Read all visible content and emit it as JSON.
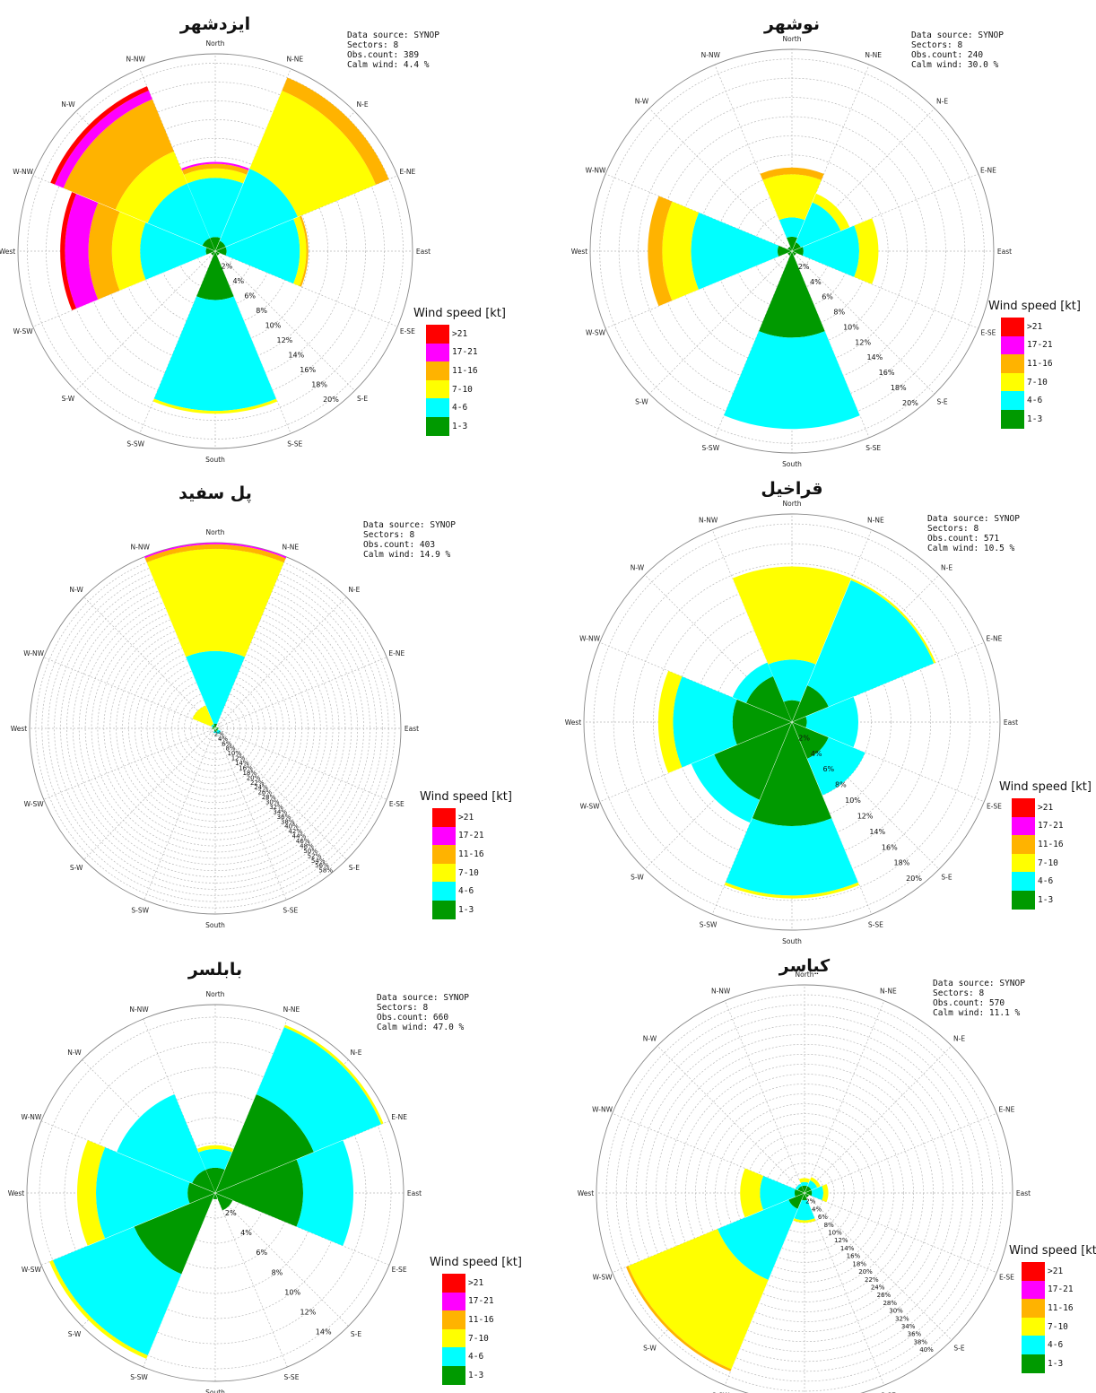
{
  "legend": {
    "title": "Wind speed [kt]",
    "classes": [
      {
        "label": ">21",
        "color": "#ff0000"
      },
      {
        "label": "17-21",
        "color": "#ff00ff"
      },
      {
        "label": "11-16",
        "color": "#ffb300"
      },
      {
        "label": "7-10",
        "color": "#ffff00"
      },
      {
        "label": "4-6",
        "color": "#00ffff"
      },
      {
        "label": "1-3",
        "color": "#009a00"
      }
    ]
  },
  "directions": [
    "North",
    "N-NE",
    "N-E",
    "E-NE",
    "East",
    "E-SE",
    "S-E",
    "S-SE",
    "South",
    "S-SW",
    "S-W",
    "W-SW",
    "West",
    "W-NW",
    "N-W",
    "N-NW"
  ],
  "chart_data": [
    {
      "type": "wind-rose",
      "title": "ایزدشهر",
      "info": {
        "source": "Data source: SYNOP",
        "sectors": "Sectors: 8",
        "obs": "Obs.count: 389",
        "calm": "Calm wind: 4.4 %"
      },
      "radial_unit": "%",
      "radial_ticks": [
        2,
        4,
        6,
        8,
        10,
        12,
        14,
        16,
        18,
        20
      ],
      "rmax": 21,
      "sectors": [
        {
          "direction": "North",
          "stack": [
            1.5,
            7.8,
            8.8,
            9.3,
            9.5,
            9.5
          ]
        },
        {
          "direction": "N-E",
          "stack": [
            1.2,
            9.5,
            18.5,
            20.0,
            20.0,
            20.0
          ]
        },
        {
          "direction": "East",
          "stack": [
            1.2,
            9.0,
            9.7,
            9.9,
            9.9,
            9.9
          ]
        },
        {
          "direction": "S-E",
          "stack": [
            0.5,
            0.5,
            0.5,
            0.5,
            0.5,
            0.5
          ]
        },
        {
          "direction": "South",
          "stack": [
            5.2,
            17.0,
            17.3,
            17.3,
            17.3,
            17.3
          ]
        },
        {
          "direction": "S-W",
          "stack": [
            0.5,
            0.5,
            0.5,
            0.5,
            0.5,
            0.5
          ]
        },
        {
          "direction": "West",
          "stack": [
            1.0,
            8.0,
            11.0,
            13.5,
            16.0,
            16.5
          ]
        },
        {
          "direction": "N-W",
          "stack": [
            1.5,
            7.8,
            11.5,
            17.5,
            18.5,
            19.0
          ]
        }
      ]
    },
    {
      "type": "wind-rose",
      "title": "نوشهر",
      "info": {
        "source": "Data source: SYNOP",
        "sectors": "Sectors: 8",
        "obs": "Obs.count: 240",
        "calm": "Calm wind: 30.0 %"
      },
      "radial_unit": "%",
      "radial_ticks": [
        2,
        4,
        6,
        8,
        10,
        12,
        14,
        16,
        18,
        20
      ],
      "rmax": 21,
      "sectors": [
        {
          "direction": "North",
          "stack": [
            1.5,
            3.5,
            8.0,
            8.7,
            8.7,
            8.7
          ]
        },
        {
          "direction": "N-E",
          "stack": [
            1.0,
            5.5,
            6.5,
            6.5,
            6.5,
            6.5
          ]
        },
        {
          "direction": "East",
          "stack": [
            1.2,
            7.0,
            9.0,
            9.0,
            9.0,
            9.0
          ]
        },
        {
          "direction": "S-E",
          "stack": [
            0.5,
            0.5,
            0.5,
            0.5,
            0.5,
            0.5
          ]
        },
        {
          "direction": "South",
          "stack": [
            9.0,
            18.5,
            18.5,
            18.5,
            18.5,
            18.5
          ]
        },
        {
          "direction": "S-W",
          "stack": [
            0.5,
            0.5,
            0.5,
            0.5,
            0.5,
            0.5
          ]
        },
        {
          "direction": "West",
          "stack": [
            1.5,
            10.5,
            13.5,
            15.0,
            15.0,
            15.0
          ]
        },
        {
          "direction": "N-W",
          "stack": [
            0.5,
            0.5,
            0.5,
            0.5,
            0.5,
            0.5
          ]
        }
      ]
    },
    {
      "type": "wind-rose",
      "title": "پل سفید",
      "info": {
        "source": "Data source: SYNOP",
        "sectors": "Sectors: 8",
        "obs": "Obs.count: 403",
        "calm": "Calm wind: 14.9 %"
      },
      "radial_unit": "%",
      "radial_ticks": [
        2,
        4,
        6,
        8,
        10,
        12,
        14,
        16,
        18,
        20,
        22,
        24,
        26,
        28,
        30,
        32,
        34,
        36,
        38,
        40,
        42,
        44,
        46,
        48,
        50,
        52,
        54,
        56,
        58
      ],
      "rmax": 60,
      "sectors": [
        {
          "direction": "North",
          "stack": [
            1.5,
            25.0,
            58.0,
            59.5,
            60.0,
            60.0
          ]
        },
        {
          "direction": "N-E",
          "stack": [
            0.5,
            0.5,
            0.5,
            0.5,
            0.5,
            0.5
          ]
        },
        {
          "direction": "East",
          "stack": [
            1.0,
            1.0,
            1.0,
            1.0,
            1.0,
            1.0
          ]
        },
        {
          "direction": "S-E",
          "stack": [
            1.0,
            2.0,
            2.0,
            2.0,
            2.0,
            2.0
          ]
        },
        {
          "direction": "South",
          "stack": [
            1.0,
            1.5,
            1.5,
            1.5,
            1.5,
            1.5
          ]
        },
        {
          "direction": "S-W",
          "stack": [
            0.5,
            0.5,
            0.5,
            0.5,
            0.5,
            0.5
          ]
        },
        {
          "direction": "West",
          "stack": [
            1.0,
            1.0,
            1.0,
            1.0,
            1.0,
            1.0
          ]
        },
        {
          "direction": "N-W",
          "stack": [
            1.0,
            1.5,
            8.0,
            8.0,
            8.0,
            8.0
          ]
        }
      ]
    },
    {
      "type": "wind-rose",
      "title": "قراخیل",
      "info": {
        "source": "Data source: SYNOP",
        "sectors": "Sectors: 8",
        "obs": "Obs.count: 571",
        "calm": "Calm wind: 10.5 %"
      },
      "radial_unit": "%",
      "radial_ticks": [
        2,
        4,
        6,
        8,
        10,
        12,
        14,
        16,
        18,
        20
      ],
      "rmax": 21,
      "sectors": [
        {
          "direction": "North",
          "stack": [
            2.2,
            6.3,
            15.7,
            15.7,
            15.7,
            15.7
          ]
        },
        {
          "direction": "N-E",
          "stack": [
            4.0,
            15.5,
            15.7,
            15.7,
            15.7,
            15.7
          ]
        },
        {
          "direction": "East",
          "stack": [
            1.5,
            6.7,
            6.7,
            6.7,
            6.7,
            6.7
          ]
        },
        {
          "direction": "S-E",
          "stack": [
            4.0,
            8.0,
            8.0,
            8.0,
            8.0,
            8.0
          ]
        },
        {
          "direction": "South",
          "stack": [
            10.5,
            17.5,
            17.8,
            17.8,
            17.8,
            17.8
          ]
        },
        {
          "direction": "S-W",
          "stack": [
            8.5,
            11.0,
            11.0,
            11.0,
            11.0,
            11.0
          ]
        },
        {
          "direction": "West",
          "stack": [
            6.0,
            12.0,
            13.5,
            13.5,
            13.5,
            13.5
          ]
        },
        {
          "direction": "N-W",
          "stack": [
            5.0,
            6.5,
            6.5,
            6.5,
            6.5,
            6.5
          ]
        }
      ]
    },
    {
      "type": "wind-rose",
      "title": "بابلسر",
      "info": {
        "source": "Data source: SYNOP",
        "sectors": "Sectors: 8",
        "obs": "Obs.count: 660",
        "calm": "Calm wind: 47.0 %"
      },
      "radial_unit": "%",
      "radial_ticks": [
        2,
        4,
        6,
        8,
        10,
        12,
        14
      ],
      "rmax": 15,
      "sectors": [
        {
          "direction": "North",
          "stack": [
            2.0,
            3.5,
            3.8,
            3.8,
            3.8,
            3.8
          ]
        },
        {
          "direction": "N-E",
          "stack": [
            8.5,
            14.3,
            14.5,
            14.5,
            14.5,
            14.5
          ]
        },
        {
          "direction": "East",
          "stack": [
            7.0,
            11.0,
            11.0,
            11.0,
            11.0,
            11.0
          ]
        },
        {
          "direction": "S-E",
          "stack": [
            1.5,
            1.5,
            1.5,
            1.5,
            1.5,
            1.5
          ]
        },
        {
          "direction": "South",
          "stack": [
            0.5,
            0.5,
            0.5,
            0.5,
            0.5,
            0.5
          ]
        },
        {
          "direction": "S-W",
          "stack": [
            7.0,
            14.0,
            14.3,
            14.3,
            14.3,
            14.3
          ]
        },
        {
          "direction": "West",
          "stack": [
            2.2,
            9.5,
            11.0,
            11.0,
            11.0,
            11.0
          ]
        },
        {
          "direction": "N-W",
          "stack": [
            2.0,
            8.5,
            8.5,
            8.5,
            8.5,
            8.5
          ]
        }
      ]
    },
    {
      "type": "wind-rose",
      "title": "کیاسر",
      "info": {
        "source": "Data source: SYNOP",
        "sectors": "Sectors: 8",
        "obs": "Obs.count: 570",
        "calm": "Calm wind: 11.1 %"
      },
      "radial_unit": "%",
      "radial_ticks": [
        2,
        4,
        6,
        8,
        10,
        12,
        14,
        16,
        18,
        20,
        22,
        24,
        26,
        28,
        30,
        32,
        34,
        36,
        38,
        40
      ],
      "rmax": 42,
      "sectors": [
        {
          "direction": "North",
          "stack": [
            1.5,
            2.2,
            3.0,
            3.0,
            3.0,
            3.0
          ]
        },
        {
          "direction": "N-E",
          "stack": [
            1.5,
            2.8,
            3.5,
            3.5,
            3.5,
            3.5
          ]
        },
        {
          "direction": "East",
          "stack": [
            1.5,
            3.8,
            4.8,
            4.8,
            4.8,
            4.8
          ]
        },
        {
          "direction": "S-E",
          "stack": [
            1.0,
            1.0,
            1.0,
            1.0,
            1.0,
            1.0
          ]
        },
        {
          "direction": "South",
          "stack": [
            1.5,
            5.5,
            6.0,
            6.0,
            6.0,
            6.0
          ]
        },
        {
          "direction": "S-W",
          "stack": [
            3.5,
            19.0,
            38.5,
            39.0,
            39.0,
            39.0
          ]
        },
        {
          "direction": "West",
          "stack": [
            2.0,
            9.0,
            13.0,
            13.0,
            13.0,
            13.0
          ]
        },
        {
          "direction": "N-W",
          "stack": [
            1.5,
            2.0,
            2.0,
            2.0,
            2.0,
            2.0
          ]
        }
      ]
    }
  ]
}
